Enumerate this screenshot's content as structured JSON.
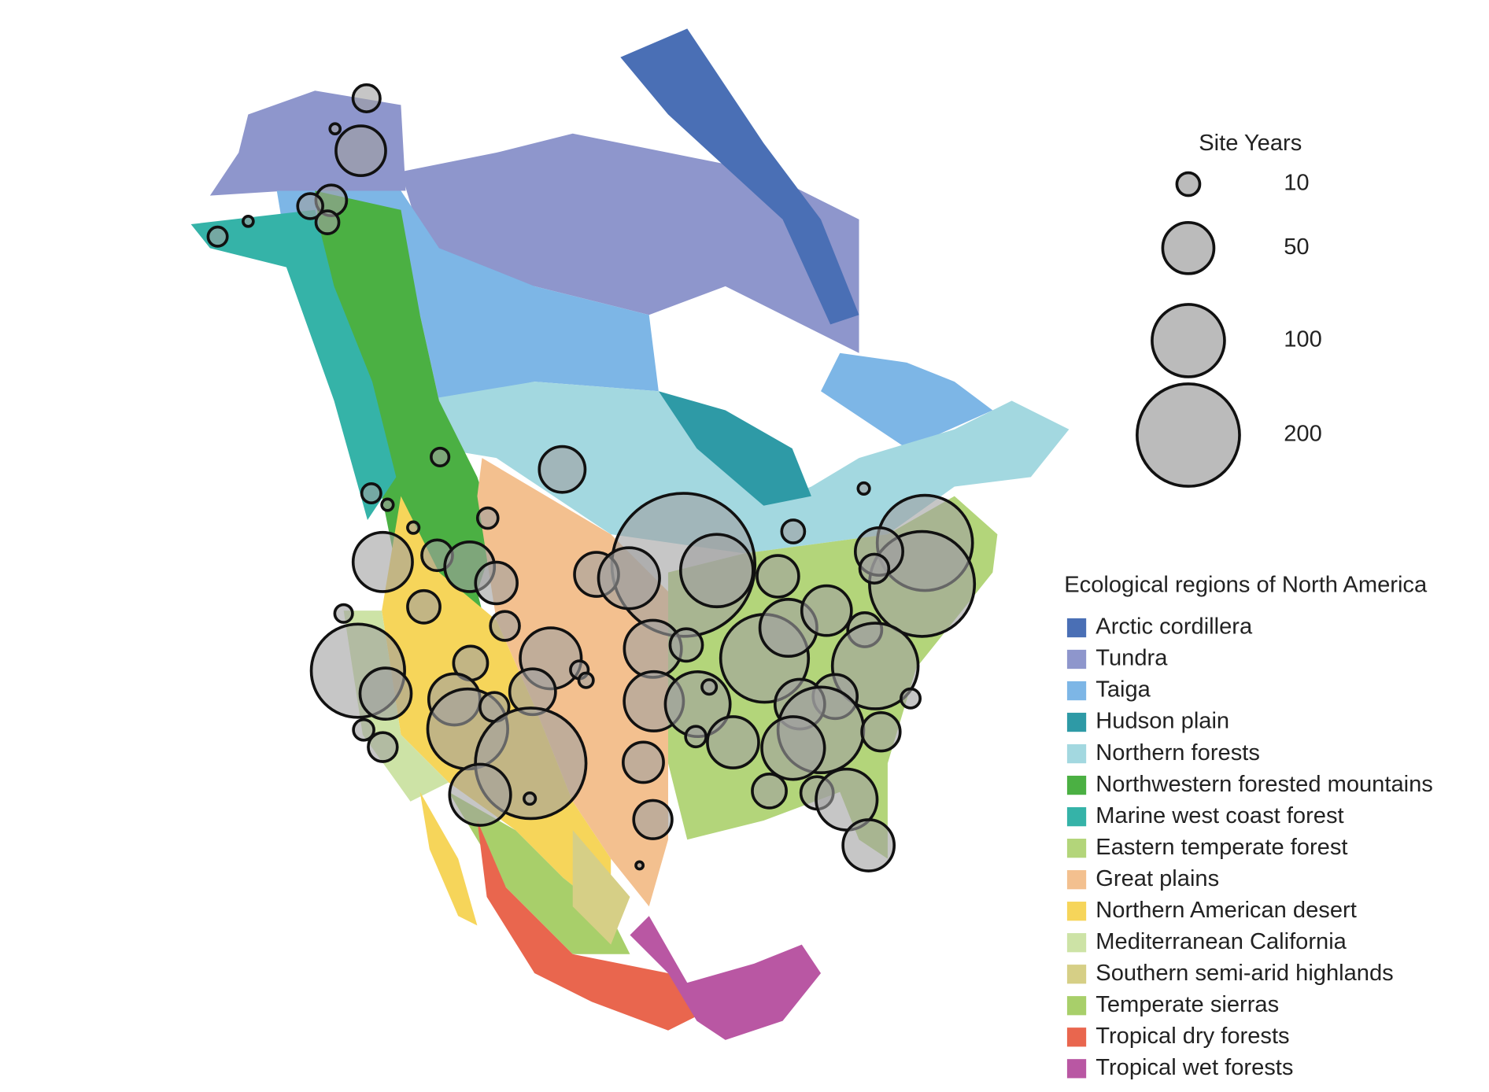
{
  "chart_data": {
    "type": "bubble_map",
    "size_legend": {
      "title": "Site Years",
      "values": [
        10,
        50,
        100,
        200
      ]
    },
    "sites": {
      "color": "#a0a0a0",
      "values": [
        14,
        2,
        47,
        18,
        12,
        10,
        7,
        2,
        6,
        40,
        7,
        2.5,
        2.5,
        8,
        390,
        100,
        173,
        210,
        43,
        16,
        10,
        2.5,
        67,
        18,
        47,
        33,
        37,
        71,
        33,
        20,
        6,
        16,
        166,
        50,
        22,
        71,
        6,
        4,
        40,
        62,
        20,
        67,
        80,
        4,
        147,
        62,
        47,
        22,
        140,
        37,
        47,
        140,
        75,
        50,
        8,
        7,
        28,
        50,
        122,
        16,
        8,
        16,
        233,
        71,
        2.5,
        31,
        22,
        20,
        71,
        50,
        28,
        1
      ]
    },
    "regions": {
      "title": "Ecological regions of North America",
      "names": [
        "Arctic cordillera",
        "Tundra",
        "Taiga",
        "Hudson plain",
        "Northern forests",
        "Northwestern forested mountains",
        "Marine west coast forest",
        "Eastern temperate forest",
        "Great plains",
        "Northern American desert",
        "Mediterranean California",
        "Southern semi-arid highlands",
        "Temperate sierras",
        "Tropical dry forests",
        "Tropical wet forests"
      ],
      "colors": [
        "#4a6fb5",
        "#8e96cc",
        "#7db6e6",
        "#2e9aa6",
        "#a3d8e0",
        "#4bb043",
        "#35b3a8",
        "#b3d57a",
        "#f3c08f",
        "#f6d55a",
        "#cde3a6",
        "#d6cf86",
        "#a8cf6a",
        "#e9664e",
        "#b957a3"
      ]
    }
  }
}
